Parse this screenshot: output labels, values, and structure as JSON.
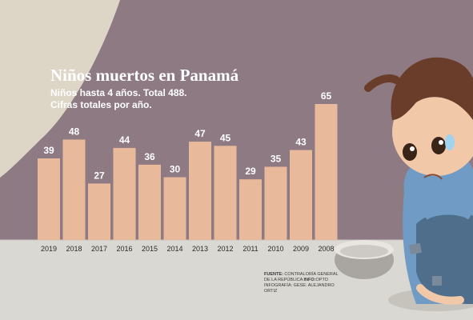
{
  "chart_data": {
    "type": "bar",
    "title": "Niños muertos en Panamá",
    "subtitle_lines": [
      "Niños hasta 4 años. Total 488.",
      "Cifras totales por año."
    ],
    "categories": [
      "2019",
      "2018",
      "2017",
      "2016",
      "2015",
      "2014",
      "2013",
      "2012",
      "2011",
      "2010",
      "2009",
      "2008"
    ],
    "values": [
      39,
      48,
      27,
      44,
      36,
      30,
      47,
      45,
      29,
      35,
      43,
      65
    ],
    "ylim": [
      0,
      70
    ],
    "bar_color": "#e8b99b",
    "label_color": "#ffffff"
  },
  "footer": {
    "source_label": "FUENTE:",
    "source_text": "CONTRALORÍA GENERAL DE LA REPÚBLICA",
    "info_label": "INFO:",
    "info_text": "OPTO",
    "credit": "INFOGRAFÍA: GESE: ALEJANDRO ORTIZ"
  },
  "colors": {
    "panel": "#8e7a83",
    "ground": "#d9d8d2",
    "paper": "#ddd5c6"
  }
}
